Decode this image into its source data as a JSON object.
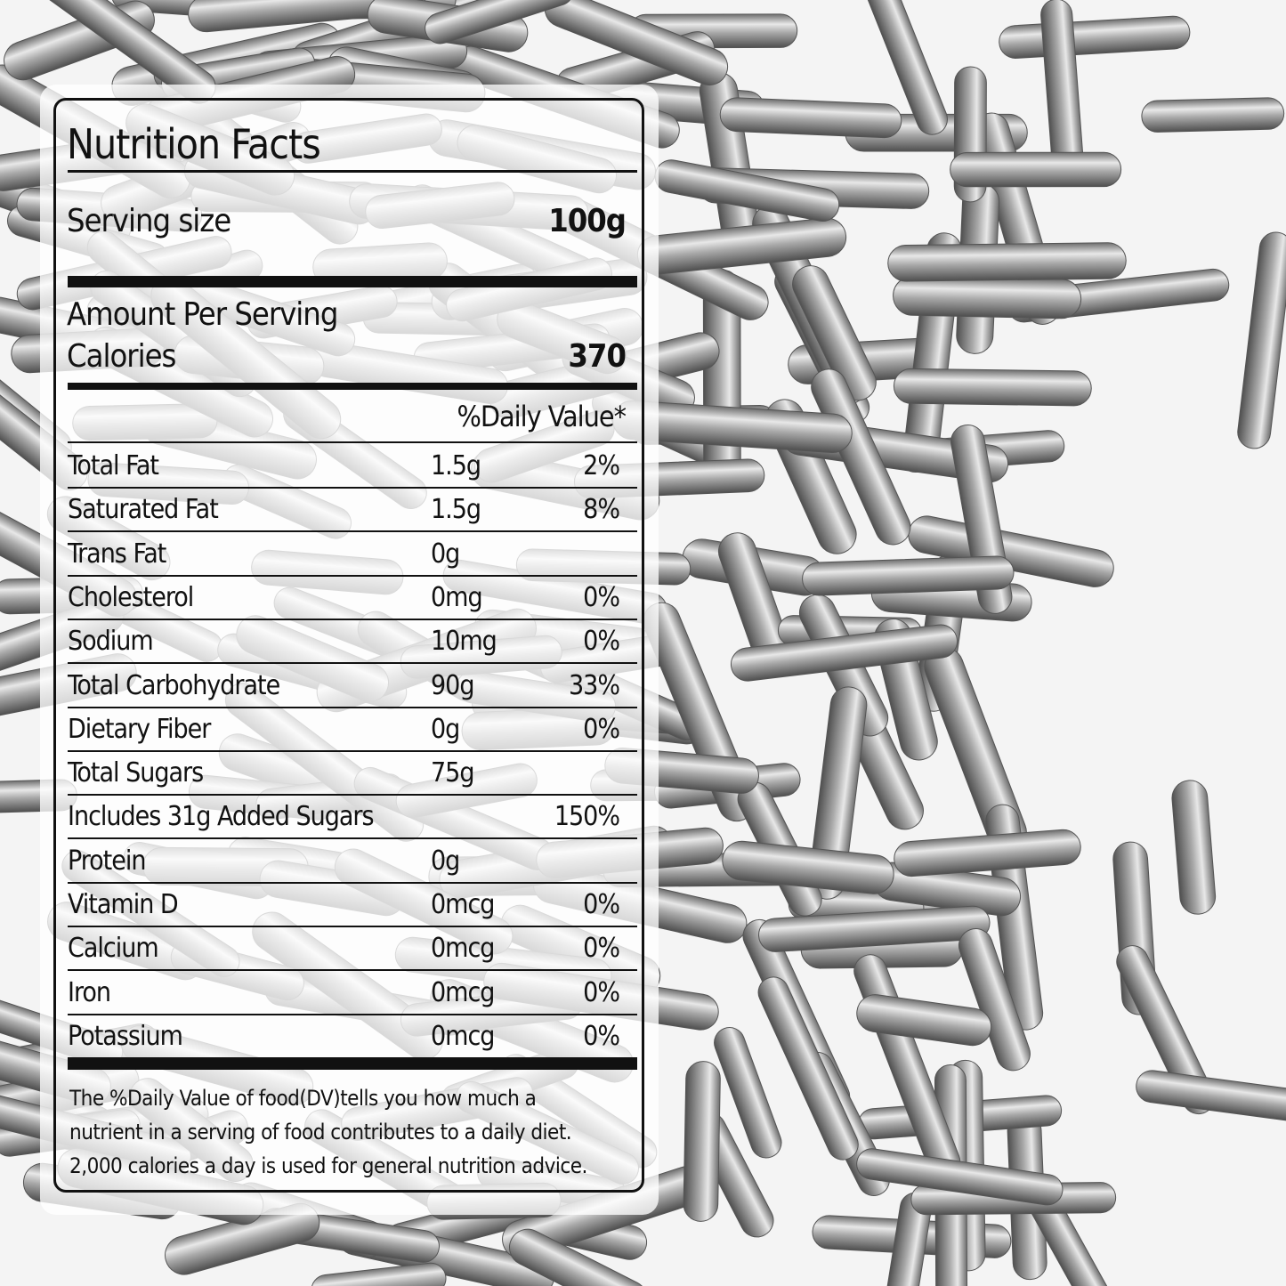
{
  "label": {
    "title": "Nutrition Facts",
    "serving_size_label": "Serving size",
    "serving_size_value": "100g",
    "amount_per_serving": "Amount Per Serving",
    "calories_label": "Calories",
    "calories_value": "370",
    "daily_value_header": "%Daily Value*",
    "rows": [
      {
        "name": "Total Fat",
        "amount": "1.5g",
        "dv": "2%"
      },
      {
        "name": "Saturated Fat",
        "amount": "1.5g",
        "dv": "8%"
      },
      {
        "name": "Trans Fat",
        "amount": "0g",
        "dv": ""
      },
      {
        "name": "Cholesterol",
        "amount": "0mg",
        "dv": "0%"
      },
      {
        "name": "Sodium",
        "amount": "10mg",
        "dv": "0%"
      },
      {
        "name": "Total Carbohydrate",
        "amount": "90g",
        "dv": "33%"
      },
      {
        "name": "Dietary Fiber",
        "amount": "0g",
        "dv": "0%"
      },
      {
        "name": "Total Sugars",
        "amount": "75g",
        "dv": ""
      },
      {
        "name": "Includes 31g Added Sugars",
        "amount": "",
        "dv": "150%"
      },
      {
        "name": "Protein",
        "amount": "0g",
        "dv": ""
      },
      {
        "name": "Vitamin D",
        "amount": "0mcg",
        "dv": "0%"
      },
      {
        "name": "Calcium",
        "amount": "0mcg",
        "dv": "0%"
      },
      {
        "name": "Iron",
        "amount": "0mcg",
        "dv": "0%"
      },
      {
        "name": "Potassium",
        "amount": "0mcg",
        "dv": "0%"
      }
    ],
    "footnote": [
      "The %Daily Value of food(DV)tells you how much a",
      "nutrient in a serving of food contributes to a daily diet.",
      "2,000 calories a day is used for general nutrition advice."
    ]
  },
  "background": {
    "subject": "silver sprinkles",
    "colors": {
      "silver": "#a8a8a8",
      "highlight": "#ececec",
      "shadow": "#5a5a5a"
    }
  }
}
